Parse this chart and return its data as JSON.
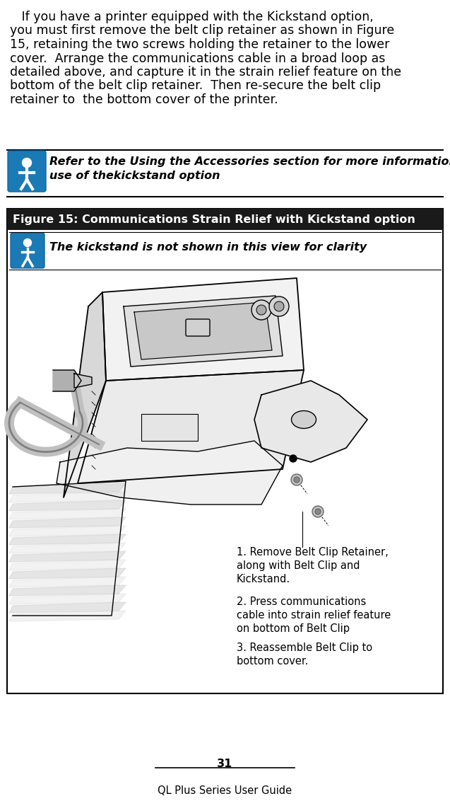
{
  "body_text_lines": [
    "   If you have a printer equipped with the Kickstand option,",
    "you must first remove the belt clip retainer as shown in Figure",
    "15, retaining the two screws holding the retainer to the lower",
    "cover.  Arrange the communications cable in a broad loop as",
    "detailed above, and capture it in the strain relief feature on the",
    "bottom of the belt clip retainer.  Then re-secure the belt clip",
    "retainer to  the bottom cover of the printer."
  ],
  "note_text_line1": "Refer to the Using the Accessories section for more information on the",
  "note_text_line2": "use of thekickstand option",
  "figure_title": "Figure 15: Communications Strain Relief with Kickstand option",
  "clarity_text": "The kickstand is not shown in this view for clarity",
  "step1": "1. Remove Belt Clip Retainer,\nalong with Belt Clip and\nKickstand.",
  "step2": "2. Press communications\ncable into strain relief feature\non bottom of Belt Clip",
  "step3": "3. Reassemble Belt Clip to\nbottom cover.",
  "page_number": "31",
  "footer_text": "QL Plus Series User Guide",
  "bg_color": "#ffffff",
  "figure_bg": "#ffffff",
  "figure_border": "#000000",
  "figure_title_bg": "#1a1a1a",
  "figure_title_color": "#ffffff",
  "note_icon_bg": "#1a7ab5",
  "body_font_size": 12.5,
  "note_font_size": 11.5,
  "figure_title_font_size": 11.5,
  "clarity_font_size": 11.5,
  "step_font_size": 10.5,
  "footer_font_size": 10.5
}
